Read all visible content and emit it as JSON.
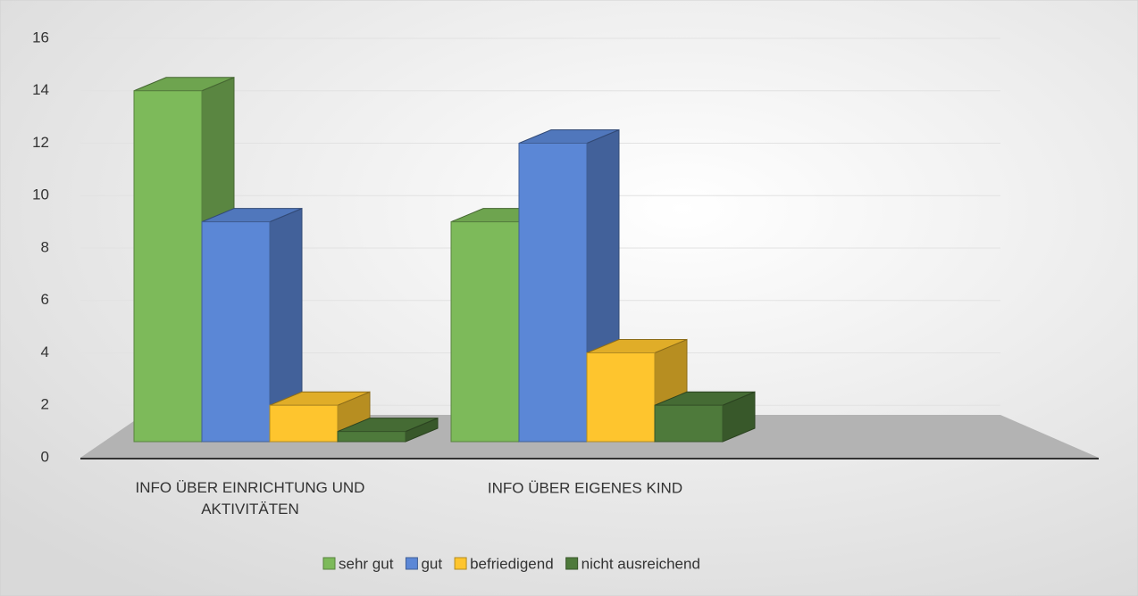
{
  "chart_data": {
    "type": "bar3d",
    "categories": [
      "INFO ÜBER EINRICHTUNG UND AKTIVITÄTEN",
      "INFO ÜBER EIGENES KIND"
    ],
    "series": [
      {
        "name": "sehr gut",
        "color": "#7dba5a",
        "values": [
          14,
          9
        ]
      },
      {
        "name": "gut",
        "color": "#5b87d6",
        "values": [
          9,
          12
        ]
      },
      {
        "name": "befriedigend",
        "color": "#fec52e",
        "values": [
          2,
          4
        ]
      },
      {
        "name": "nicht ausreichend",
        "color": "#4e7a3b",
        "values": [
          1,
          2
        ]
      }
    ],
    "ylim": [
      0,
      16
    ],
    "yticks": [
      0,
      2,
      4,
      6,
      8,
      10,
      12,
      14,
      16
    ],
    "grid": true,
    "legend": "bottom"
  }
}
